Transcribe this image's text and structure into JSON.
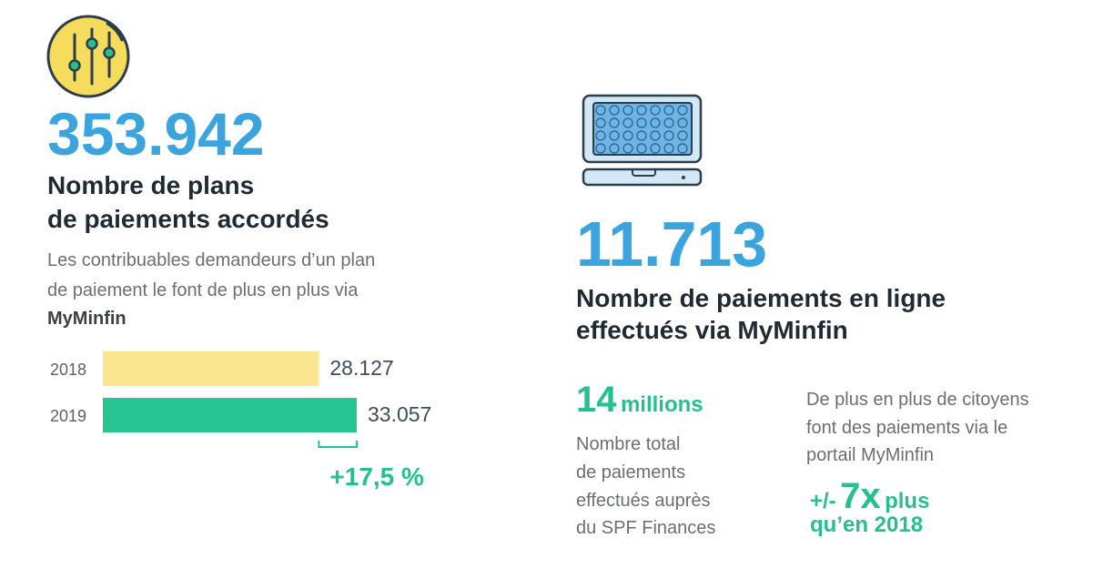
{
  "left": {
    "number": "353.942",
    "title": [
      "Nombre de plans",
      "de paiements accordés"
    ],
    "description": [
      "Les contribuables demandeurs d’un plan",
      "de paiement le font de plus en plus via",
      "MyMinfin"
    ]
  },
  "chart_data": {
    "type": "bar",
    "orientation": "horizontal",
    "categories": [
      "2018",
      "2019"
    ],
    "values": [
      28127,
      33057
    ],
    "value_labels": [
      "28.127",
      "33.057"
    ],
    "colors": [
      "#f9e68f",
      "#26c591"
    ],
    "annotation": "+17,5 %"
  },
  "right": {
    "number": "11.713",
    "title": [
      "Nombre de paiements en ligne",
      "effectués via MyMinfin"
    ],
    "stat": {
      "number": "14",
      "unit": "millions",
      "description": [
        "Nombre total",
        "de paiements",
        "effectués auprès",
        "du SPF Finances"
      ]
    },
    "trend": {
      "description": [
        "De plus en plus de citoyens",
        "font des paiements via le",
        "portail MyMinfin"
      ],
      "prefix": "+/-",
      "number": "7x",
      "suffix": "plus",
      "line2": "qu’en 2018"
    }
  }
}
